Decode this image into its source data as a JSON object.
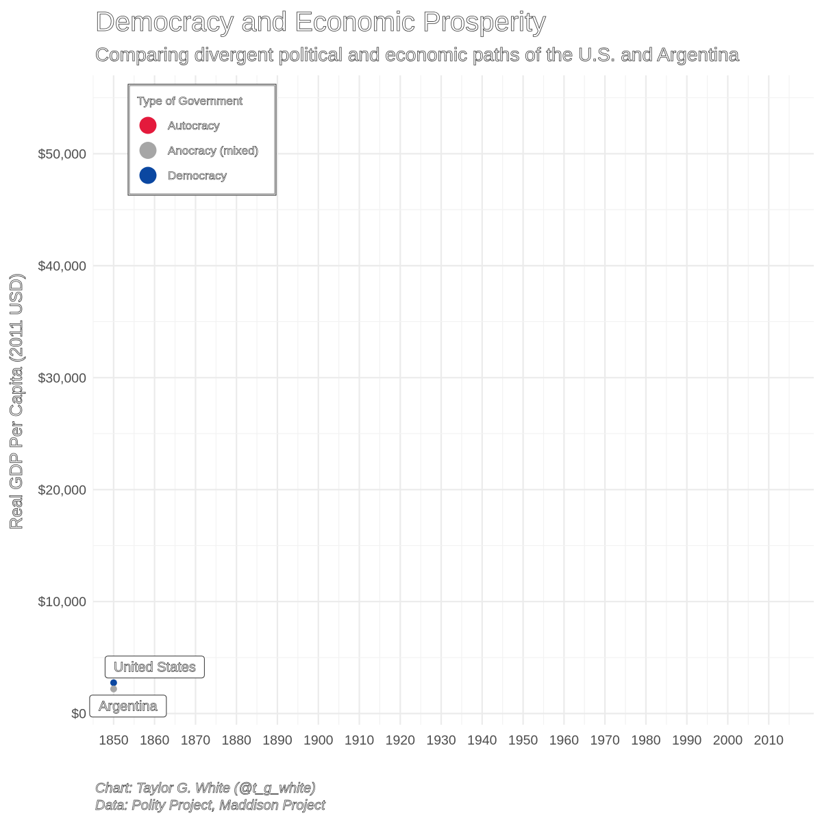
{
  "chart_data": {
    "type": "scatter",
    "title": "Democracy and Economic Prosperity",
    "subtitle": "Comparing divergent political and economic paths of the U.S. and Argentina",
    "xlabel": "",
    "ylabel": "Real GDP Per Capita (2011 USD)",
    "xlim": [
      1845,
      2021
    ],
    "ylim": [
      -1000,
      57000
    ],
    "x_ticks": [
      1850,
      1860,
      1870,
      1880,
      1890,
      1900,
      1910,
      1920,
      1930,
      1940,
      1950,
      1960,
      1970,
      1980,
      1990,
      2000,
      2010
    ],
    "x_tick_labels": [
      "1850",
      "1860",
      "1870",
      "1880",
      "1890",
      "1900",
      "1910",
      "1920",
      "1930",
      "1940",
      "1950",
      "1960",
      "1970",
      "1980",
      "1990",
      "2000",
      "2010"
    ],
    "y_ticks": [
      0,
      10000,
      20000,
      30000,
      40000,
      50000
    ],
    "y_tick_labels": [
      "$0",
      "$10,000",
      "$20,000",
      "$30,000",
      "$40,000",
      "$50,000"
    ],
    "grid": true,
    "legend": {
      "title": "Type of Government",
      "placement": "top-left",
      "entries": [
        {
          "label": "Autocracy",
          "color": "#E41A3C"
        },
        {
          "label": "Anocracy (mixed)",
          "color": "#A6A6A6"
        },
        {
          "label": "Democracy",
          "color": "#0B47A1"
        }
      ]
    },
    "series": [
      {
        "name": "United States",
        "x": [
          1850
        ],
        "y": [
          2750
        ],
        "government": [
          "Democracy"
        ],
        "color": "#0B47A1"
      },
      {
        "name": "Argentina",
        "x": [
          1850
        ],
        "y": [
          2200
        ],
        "government": [
          "Anocracy (mixed)"
        ],
        "color": "#A6A6A6"
      }
    ],
    "caption": [
      "Chart: Taylor G. White (@t_g_white)",
      "Data: Polity Project, Maddison Project"
    ]
  }
}
